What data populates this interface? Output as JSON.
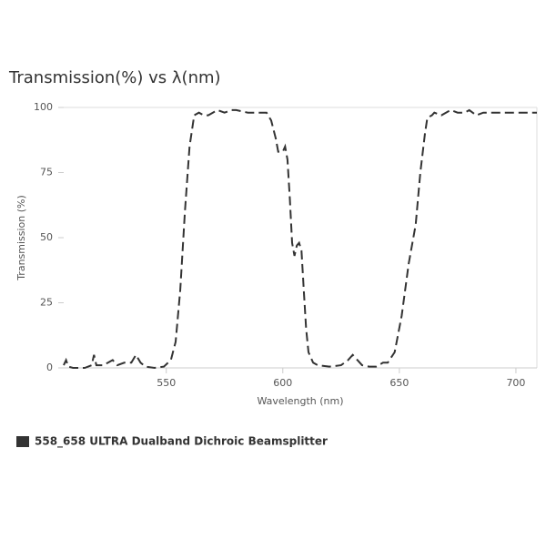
{
  "chart_data": {
    "type": "line",
    "title": "Transmission(%) vs λ(nm)",
    "x_label": "Wavelength (nm)",
    "y_label": "Transmission (%)",
    "xlim": [
      506,
      709
    ],
    "ylim": [
      0,
      100
    ],
    "xticks": [
      550,
      600,
      650,
      700
    ],
    "yticks": [
      0,
      25,
      50,
      75,
      100
    ],
    "grid": false,
    "x": [
      506,
      507,
      508,
      510,
      515,
      518,
      519,
      520,
      523,
      525,
      527,
      529,
      532,
      535,
      537,
      539,
      541,
      545,
      549,
      552,
      554,
      556,
      558,
      560,
      562,
      564,
      566,
      568,
      570,
      572,
      575,
      578,
      580,
      585,
      590,
      593,
      595,
      597,
      598,
      600,
      601,
      602,
      603,
      604,
      605,
      606,
      607,
      608,
      609,
      610,
      611,
      613,
      615,
      620,
      625,
      628,
      630,
      632,
      634,
      637,
      640,
      643,
      645,
      648,
      651,
      654,
      657,
      659,
      661,
      662,
      664,
      665,
      668,
      670,
      672,
      675,
      678,
      680,
      683,
      686,
      690,
      695,
      700,
      705,
      709
    ],
    "series": [
      {
        "name": "558_658 ULTRA Dualband Dichroic Beamsplitter",
        "color": "#333333",
        "dashed": true,
        "values": [
          1,
          3,
          0.5,
          0,
          0,
          1,
          5,
          1,
          1,
          2,
          3,
          1,
          2,
          2,
          5,
          2,
          0.5,
          0,
          0.5,
          3,
          10,
          30,
          60,
          85,
          97,
          98,
          97,
          97,
          98,
          99,
          98,
          99,
          99,
          98,
          98,
          98,
          95,
          88,
          83,
          83,
          85,
          80,
          65,
          48,
          43,
          47,
          48,
          45,
          30,
          15,
          6,
          2,
          1,
          0.5,
          1,
          3,
          5,
          3,
          1,
          0.5,
          0.5,
          2,
          2,
          6,
          20,
          40,
          55,
          75,
          90,
          96,
          97,
          98,
          97,
          98,
          99,
          98,
          98,
          99,
          97,
          98,
          98,
          98,
          98,
          98,
          98
        ]
      }
    ]
  }
}
